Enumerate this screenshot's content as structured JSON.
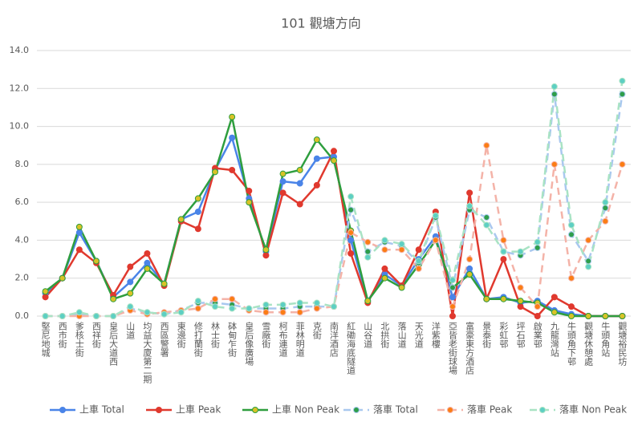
{
  "chart_data": {
    "type": "line",
    "title": "101 觀塘方向",
    "categories": [
      "堅尼地城",
      "西市街",
      "爹核士街",
      "西祥街",
      "皇后大道西",
      "山道",
      "均益大廈第二期",
      "西區警署",
      "東邊街",
      "修打蘭街",
      "林士街",
      "砵甸乍街",
      "皇后像廣場",
      "雪廠街",
      "柯布連道",
      "菲林明道",
      "克街",
      "南洋酒店",
      "紅磡海底隧道",
      "山谷道",
      "北拱街",
      "落山道",
      "天光道",
      "洋紫樓",
      "亞皆老街球場",
      "富豪東方酒店",
      "景泰街",
      "彩虹邨",
      "坪石邨",
      "啟業邨",
      "九龍灣站",
      "牛頭角下邨",
      "觀塘休憩處",
      "牛頭角站",
      "觀塘裕民坊"
    ],
    "series": [
      {
        "name": "上車 Total",
        "color": "#4a84e8",
        "marker_color": "#4a84e8",
        "dashed": false,
        "values": [
          1.2,
          2.0,
          4.4,
          2.9,
          1.0,
          1.8,
          2.8,
          1.7,
          5.1,
          5.5,
          7.7,
          9.4,
          6.2,
          3.4,
          7.1,
          7.0,
          8.3,
          8.4,
          4.0,
          0.8,
          2.2,
          1.6,
          3.0,
          4.2,
          1.0,
          2.5,
          0.9,
          1.0,
          0.7,
          0.8,
          0.3,
          0.1,
          0,
          0,
          0
        ]
      },
      {
        "name": "上車 Peak",
        "color": "#e0392e",
        "marker_color": "#e0392e",
        "dashed": false,
        "values": [
          1.0,
          2.0,
          3.5,
          2.8,
          1.1,
          2.6,
          3.3,
          1.6,
          5.0,
          4.6,
          7.8,
          7.7,
          6.6,
          3.2,
          6.5,
          5.9,
          6.9,
          8.7,
          3.3,
          0.7,
          2.5,
          1.6,
          3.5,
          5.5,
          0,
          6.5,
          0.9,
          3.0,
          0.5,
          0,
          1.0,
          0.5,
          0,
          0,
          0
        ]
      },
      {
        "name": "上車 Non Peak",
        "color": "#2e9e3e",
        "marker_color": "#d9c227",
        "dashed": false,
        "values": [
          1.3,
          2.0,
          4.7,
          2.9,
          0.9,
          1.2,
          2.5,
          1.7,
          5.1,
          6.2,
          7.6,
          10.5,
          6.0,
          3.5,
          7.5,
          7.7,
          9.3,
          8.2,
          4.5,
          0.8,
          2.0,
          1.5,
          2.7,
          4.0,
          1.5,
          2.2,
          0.9,
          0.9,
          0.8,
          0.7,
          0.2,
          0,
          0,
          0,
          0
        ]
      },
      {
        "name": "落車 Total",
        "color": "#a9c8ef",
        "marker_color": "#2e9e4a",
        "dashed": true,
        "values": [
          0,
          0,
          0.1,
          0,
          0,
          0.4,
          0.2,
          0.1,
          0.3,
          0.7,
          0.7,
          0.6,
          0.4,
          0.4,
          0.4,
          0.5,
          0.5,
          0.5,
          5.6,
          3.4,
          3.9,
          3.7,
          2.8,
          5.2,
          1.5,
          5.6,
          5.2,
          3.4,
          3.2,
          3.6,
          11.7,
          4.3,
          2.9,
          5.7,
          11.7
        ]
      },
      {
        "name": "落車 Peak",
        "color": "#f4b3a8",
        "marker_color": "#fb7d14",
        "dashed": true,
        "values": [
          0,
          0,
          0,
          0,
          0,
          0.3,
          0.1,
          0.2,
          0.3,
          0.4,
          0.9,
          0.9,
          0.3,
          0.2,
          0.2,
          0.2,
          0.4,
          0.5,
          4.4,
          3.9,
          3.5,
          3.5,
          2.5,
          4.0,
          0.5,
          3.0,
          9.0,
          4.0,
          1.5,
          0.5,
          8.0,
          2.0,
          4.0,
          5.0,
          8.0
        ]
      },
      {
        "name": "落車 Non Peak",
        "color": "#a9e3c4",
        "marker_color": "#5dcfc3",
        "dashed": true,
        "values": [
          0,
          0,
          0.2,
          0,
          0,
          0.5,
          0.2,
          0.1,
          0.2,
          0.8,
          0.5,
          0.4,
          0.4,
          0.6,
          0.6,
          0.7,
          0.7,
          0.5,
          6.3,
          3.1,
          4.0,
          3.8,
          2.9,
          5.3,
          1.9,
          5.8,
          4.8,
          3.4,
          3.4,
          3.9,
          12.1,
          4.8,
          2.6,
          6.0,
          12.4
        ]
      }
    ],
    "ylim": [
      0,
      14
    ],
    "yticks": [
      {
        "value": 0,
        "label": "0.0"
      },
      {
        "value": 2,
        "label": "2.0"
      },
      {
        "value": 4,
        "label": "4.0"
      },
      {
        "value": 6,
        "label": "6.0"
      },
      {
        "value": 8,
        "label": "8.0"
      },
      {
        "value": 10,
        "label": "10.0"
      },
      {
        "value": 12,
        "label": "12.0"
      },
      {
        "value": 14,
        "label": "14.0"
      }
    ],
    "grid": true,
    "legend": "bottom"
  }
}
